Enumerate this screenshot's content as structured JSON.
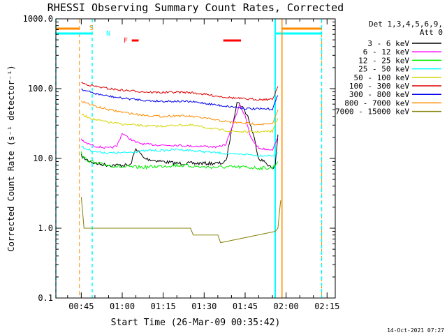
{
  "footer_timestamp": "14-Oct-2021 07:27",
  "chart_data": {
    "type": "line",
    "title": "RHESSI Observing Summary Count Rates, Corrected",
    "xlabel": "Start Time (26-Mar-09 00:35:42)",
    "ylabel": "Corrected Count Rate (s⁻¹ detector⁻¹)",
    "y_scale": "log",
    "ylim": [
      0.1,
      1000
    ],
    "y_ticks": [
      "1000.0",
      "100.0",
      "10.0",
      "1.0",
      "0.1"
    ],
    "xlim": [
      "00:35:42",
      "02:18:00"
    ],
    "x_ticks": [
      "00:45",
      "01:00",
      "01:15",
      "01:30",
      "01:45",
      "02:00",
      "02:15"
    ],
    "legend": {
      "placement": "right",
      "header": [
        "Det 1,3,4,5,6,9,",
        "Att 0"
      ],
      "entries": [
        {
          "label": "3 - 6 keV",
          "color": "#000000"
        },
        {
          "label": "6 - 12 keV",
          "color": "#ff00ff"
        },
        {
          "label": "12 - 25 keV",
          "color": "#00ee00"
        },
        {
          "label": "25 - 50 keV",
          "color": "#00ffff"
        },
        {
          "label": "50 - 100 keV",
          "color": "#d4d400"
        },
        {
          "label": "100 - 300 keV",
          "color": "#e00000"
        },
        {
          "label": "300 - 800 keV",
          "color": "#0000ee"
        },
        {
          "label": "800 - 7000 keV",
          "color": "#ff8c00"
        },
        {
          "label": "7000 - 15000 keV",
          "color": "#808000"
        }
      ]
    },
    "flag_labels": [
      {
        "text": "S",
        "color": "#ff8c00"
      },
      {
        "text": "N",
        "color": "#00ffff"
      },
      {
        "text": "F",
        "color": "#ff0000"
      }
    ],
    "series": [
      {
        "name": "3 - 6 keV",
        "color": "#000000",
        "x": [
          "00:45:00",
          "00:46:00",
          "00:50:00",
          "00:55:00",
          "01:00:00",
          "01:03:00",
          "01:05:00",
          "01:08:00",
          "01:15:00",
          "01:20:00",
          "01:25:00",
          "01:30:00",
          "01:33:00",
          "01:36:00",
          "01:38:00",
          "01:40:00",
          "01:42:00",
          "01:44:00",
          "01:46:00",
          "01:48:00",
          "01:50:00",
          "01:53:00",
          "01:55:00",
          "01:56:00",
          "01:57:00"
        ],
        "y": [
          11,
          10,
          8.5,
          8,
          8,
          8,
          14,
          10,
          9,
          8.5,
          8.5,
          8.5,
          8.5,
          8.5,
          9,
          25,
          65,
          55,
          40,
          22,
          10,
          8.5,
          7,
          8,
          22
        ]
      },
      {
        "name": "6 - 12 keV",
        "color": "#ff00ff",
        "x": [
          "00:45:00",
          "00:46:00",
          "00:50:00",
          "00:55:00",
          "00:58:00",
          "01:00:00",
          "01:02:00",
          "01:05:00",
          "01:08:00",
          "01:15:00",
          "01:20:00",
          "01:25:00",
          "01:30:00",
          "01:35:00",
          "01:38:00",
          "01:41:00",
          "01:43:00",
          "01:45:00",
          "01:47:00",
          "01:50:00",
          "01:53:00",
          "01:55:00",
          "01:57:00"
        ],
        "y": [
          19,
          17,
          15,
          14,
          15,
          23,
          20,
          17,
          16,
          15.5,
          15.5,
          15,
          15,
          14.5,
          16,
          35,
          60,
          40,
          20,
          14,
          13.5,
          13.5,
          20
        ]
      },
      {
        "name": "12 - 25 keV",
        "color": "#00ee00",
        "x": [
          "00:45:00",
          "00:46:00",
          "00:50:00",
          "00:55:00",
          "01:00:00",
          "01:05:00",
          "01:10:00",
          "01:15:00",
          "01:20:00",
          "01:25:00",
          "01:30:00",
          "01:35:00",
          "01:40:00",
          "01:45:00",
          "01:50:00",
          "01:55:00",
          "01:57:00"
        ],
        "y": [
          12,
          10,
          8.5,
          8,
          7.5,
          7.5,
          7.5,
          7.8,
          8,
          7.8,
          7.5,
          7.5,
          7.5,
          7.5,
          7.3,
          7.3,
          9
        ]
      },
      {
        "name": "25 - 50 keV",
        "color": "#00ffff",
        "x": [
          "00:45:00",
          "00:46:00",
          "00:50:00",
          "00:55:00",
          "01:00:00",
          "01:05:00",
          "01:10:00",
          "01:15:00",
          "01:20:00",
          "01:25:00",
          "01:30:00",
          "01:35:00",
          "01:40:00",
          "01:45:00",
          "01:50:00",
          "01:55:00",
          "01:57:00"
        ],
        "y": [
          15,
          14,
          12.5,
          12,
          12,
          12.5,
          13,
          13,
          13.5,
          13,
          12.5,
          12,
          11.5,
          11.5,
          11,
          11,
          12
        ]
      },
      {
        "name": "50 - 100 keV",
        "color": "#d4d400",
        "x": [
          "00:45:00",
          "00:46:00",
          "00:50:00",
          "00:55:00",
          "01:00:00",
          "01:05:00",
          "01:10:00",
          "01:15:00",
          "01:20:00",
          "01:25:00",
          "01:30:00",
          "01:35:00",
          "01:40:00",
          "01:45:00",
          "01:50:00",
          "01:55:00",
          "01:57:00"
        ],
        "y": [
          43,
          41,
          36,
          33,
          31,
          30,
          29,
          29,
          30,
          30,
          28,
          26,
          24.5,
          24,
          24,
          24.5,
          38
        ]
      },
      {
        "name": "100 - 300 keV",
        "color": "#e00000",
        "x": [
          "00:45:00",
          "00:46:00",
          "00:50:00",
          "00:55:00",
          "01:00:00",
          "01:05:00",
          "01:10:00",
          "01:15:00",
          "01:20:00",
          "01:25:00",
          "01:30:00",
          "01:35:00",
          "01:40:00",
          "01:45:00",
          "01:50:00",
          "01:55:00",
          "01:57:00"
        ],
        "y": [
          122,
          118,
          108,
          100,
          95,
          92,
          89,
          88,
          89,
          88,
          83,
          78,
          74,
          71,
          70,
          70,
          108
        ]
      },
      {
        "name": "300 - 800 keV",
        "color": "#0000ee",
        "x": [
          "00:45:00",
          "00:46:00",
          "00:50:00",
          "00:55:00",
          "01:00:00",
          "01:05:00",
          "01:10:00",
          "01:15:00",
          "01:20:00",
          "01:25:00",
          "01:30:00",
          "01:35:00",
          "01:40:00",
          "01:45:00",
          "01:50:00",
          "01:55:00",
          "01:57:00"
        ],
        "y": [
          100,
          95,
          85,
          78,
          73,
          70,
          67,
          66,
          66,
          65,
          62,
          58,
          55,
          52,
          51,
          51,
          80
        ]
      },
      {
        "name": "800 - 7000 keV",
        "color": "#ff8c00",
        "x": [
          "00:45:00",
          "00:46:00",
          "00:50:00",
          "00:55:00",
          "01:00:00",
          "01:05:00",
          "01:10:00",
          "01:15:00",
          "01:20:00",
          "01:25:00",
          "01:30:00",
          "01:35:00",
          "01:40:00",
          "01:45:00",
          "01:50:00",
          "01:55:00",
          "01:57:00"
        ],
        "y": [
          68,
          64,
          56,
          50,
          46,
          43,
          41,
          40,
          41,
          40,
          38,
          35,
          33,
          32,
          31,
          31,
          50
        ]
      },
      {
        "name": "7000 - 15000 keV",
        "color": "#808000",
        "x": [
          "00:45:00",
          "00:46:00",
          "00:47:00",
          "01:08:00",
          "01:11:00",
          "01:15:00",
          "01:20:00",
          "01:25:00",
          "01:26:00",
          "01:35:00",
          "01:36:00",
          "01:56:00",
          "01:57:00",
          "01:58:00"
        ],
        "y": [
          2.8,
          1.0,
          1.0,
          1.0,
          1.0,
          1.0,
          1.0,
          1.0,
          0.8,
          0.8,
          0.62,
          0.9,
          1.0,
          2.5
        ]
      }
    ],
    "observing_periods": [
      {
        "label": "SAA",
        "color": "#ff8c00",
        "ranges": [
          [
            "00:35:42",
            "00:44:20"
          ],
          [
            "01:58:30",
            "02:13:00"
          ]
        ]
      },
      {
        "label": "NIGHT",
        "color": "#00ffff",
        "ranges": [
          [
            "00:35:42",
            "00:49:00"
          ],
          [
            "01:56:00",
            "02:13:00"
          ]
        ]
      },
      {
        "label": "FLARE",
        "color": "#ff0000",
        "ranges": [
          [
            "01:03:30",
            "01:06:00"
          ],
          [
            "01:37:00",
            "01:43:30"
          ]
        ]
      }
    ]
  }
}
